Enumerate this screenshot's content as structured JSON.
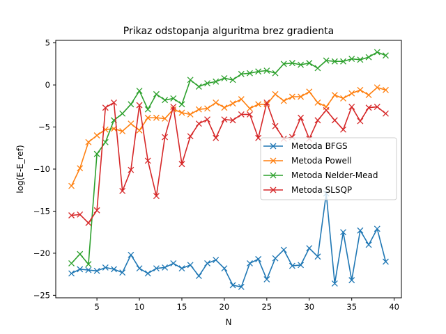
{
  "chart_data": {
    "type": "line",
    "title": "Prikaz odstopanja alguritma brez gradienta",
    "xlabel": "N",
    "ylabel": "log(E-E_ref)",
    "xlim": [
      0.15,
      40.85
    ],
    "ylim": [
      -25.3,
      5.3
    ],
    "xticks": [
      5,
      10,
      15,
      20,
      25,
      30,
      35,
      40
    ],
    "yticks": [
      -25,
      -20,
      -15,
      -10,
      -5,
      0,
      5
    ],
    "grid": false,
    "legend": "center-right",
    "x": [
      2,
      3,
      4,
      5,
      6,
      7,
      8,
      9,
      10,
      11,
      12,
      13,
      14,
      15,
      16,
      17,
      18,
      19,
      20,
      21,
      22,
      23,
      24,
      25,
      26,
      27,
      28,
      29,
      30,
      31,
      32,
      33,
      34,
      35,
      36,
      37,
      38,
      39
    ],
    "series": [
      {
        "name": "Metoda BFGS",
        "color": "#1f77b4",
        "values": [
          -22.4,
          -21.9,
          -22.0,
          -22.1,
          -21.7,
          -21.9,
          -22.3,
          -20.2,
          -21.8,
          -22.4,
          -21.8,
          -21.7,
          -21.2,
          -21.8,
          -21.4,
          -22.7,
          -21.2,
          -20.8,
          -21.8,
          -23.8,
          -24.0,
          -21.2,
          -20.7,
          -23.1,
          -20.6,
          -19.6,
          -21.5,
          -21.4,
          -19.4,
          -20.4,
          -12.9,
          -23.6,
          -17.5,
          -23.2,
          -17.3,
          -19.0,
          -17.1,
          -21.0
        ]
      },
      {
        "name": "Metoda Powell",
        "color": "#ff7f0e",
        "values": [
          -12.0,
          -9.9,
          -6.8,
          -6.0,
          -5.3,
          -5.2,
          -5.5,
          -4.6,
          -5.4,
          -3.9,
          -3.9,
          -4.0,
          -2.9,
          -3.3,
          -3.5,
          -2.9,
          -2.8,
          -2.1,
          -2.7,
          -2.2,
          -1.7,
          -2.8,
          -2.3,
          -2.3,
          -1.1,
          -1.9,
          -1.4,
          -1.4,
          -0.8,
          -2.1,
          -2.6,
          -1.2,
          -1.6,
          -1.0,
          -0.6,
          -1.2,
          -0.3,
          -0.6
        ]
      },
      {
        "name": "Metoda Nelder-Mead",
        "color": "#2ca02c",
        "values": [
          -21.2,
          -20.1,
          -21.3,
          -8.2,
          -6.8,
          -4.2,
          -3.4,
          -2.3,
          -0.7,
          -2.9,
          -1.1,
          -1.8,
          -1.6,
          -2.3,
          0.6,
          -0.2,
          0.2,
          0.4,
          0.8,
          0.6,
          1.3,
          1.4,
          1.6,
          1.7,
          1.4,
          2.5,
          2.6,
          2.4,
          2.6,
          2.0,
          2.9,
          2.8,
          2.8,
          3.1,
          3.0,
          3.3,
          3.9,
          3.5
        ]
      },
      {
        "name": "Metoda SLSQP",
        "color": "#d62728",
        "values": [
          -15.5,
          -15.4,
          -16.4,
          -14.9,
          -2.7,
          -2.1,
          -12.6,
          -10.1,
          -2.4,
          -9.0,
          -13.2,
          -6.2,
          -2.6,
          -9.4,
          -6.1,
          -4.6,
          -4.1,
          -6.3,
          -4.1,
          -4.2,
          -3.5,
          -3.5,
          -6.3,
          -2.1,
          -4.9,
          -6.4,
          -6.2,
          -3.9,
          -6.4,
          -4.2,
          -3.0,
          -4.2,
          -5.3,
          -2.6,
          -4.3,
          -2.7,
          -2.6,
          -3.4
        ]
      }
    ]
  }
}
